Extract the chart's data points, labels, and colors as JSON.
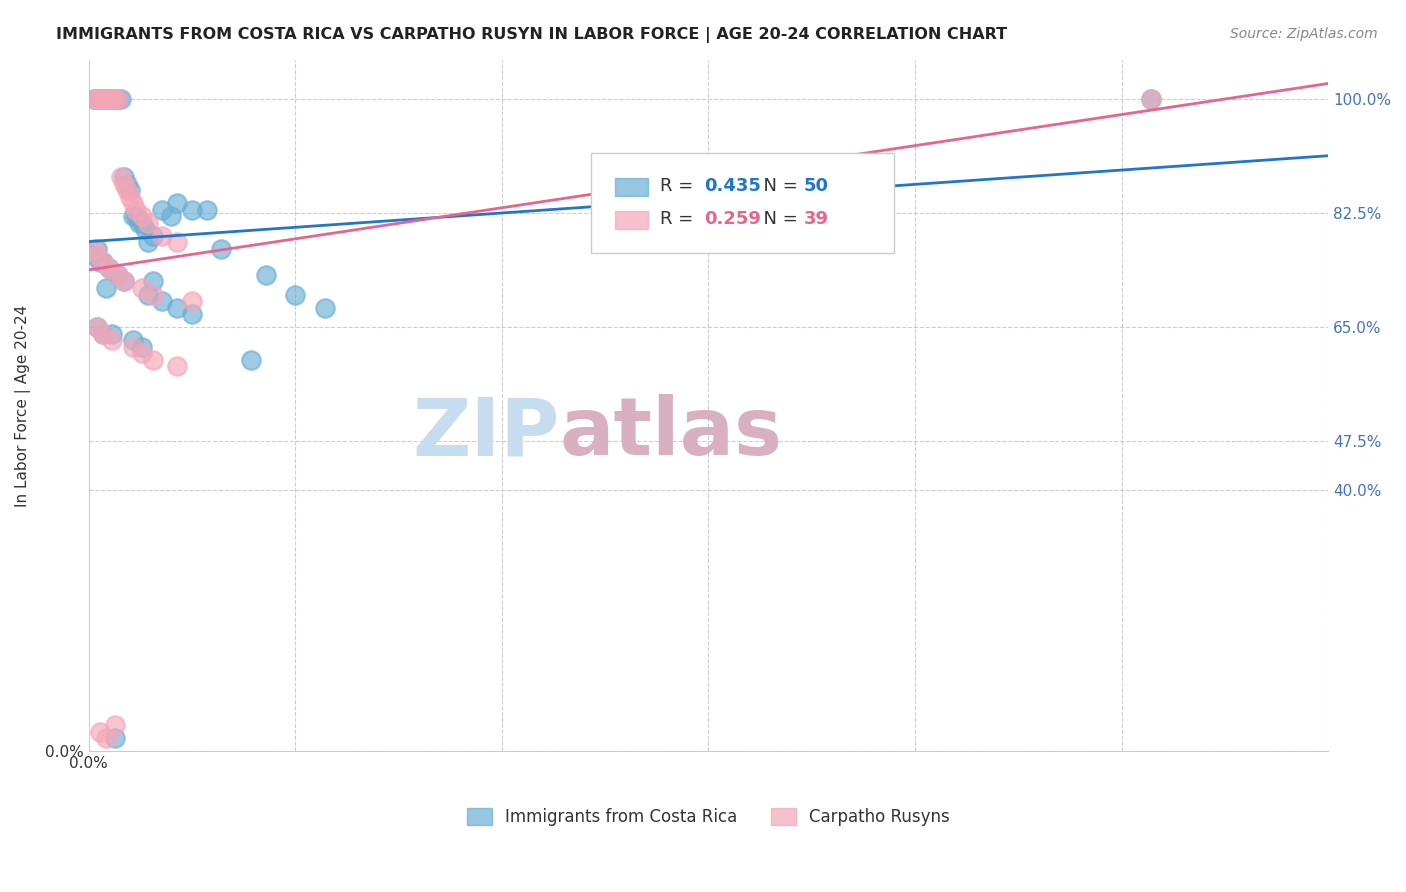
{
  "title": "IMMIGRANTS FROM COSTA RICA VS CARPATHO RUSYN IN LABOR FORCE | AGE 20-24 CORRELATION CHART",
  "source": "Source: ZipAtlas.com",
  "ylabel": "In Labor Force | Age 20-24",
  "legend_labels": [
    "Immigrants from Costa Rica",
    "Carpatho Rusyns"
  ],
  "blue_R": 0.435,
  "blue_N": 50,
  "pink_R": 0.259,
  "pink_N": 39,
  "blue_color": "#6aaed6",
  "pink_color": "#f4a6b8",
  "blue_line_color": "#2176c7",
  "pink_line_color": "#e8648c",
  "title_color": "#222222",
  "axis_label_color": "#333333",
  "right_axis_color": "#4472c4",
  "watermark_zip_color": "#c8dcf0",
  "watermark_atlas_color": "#d8b0c0",
  "background_color": "#ffffff",
  "grid_color": "#cccccc",
  "xlim": [
    0.0,
    0.42
  ],
  "ylim": [
    0.0,
    1.06
  ],
  "yticks_right": [
    0.4,
    0.475,
    0.65,
    0.825,
    1.0
  ],
  "ytick_right_labels": [
    "40.0%",
    "47.5%",
    "65.0%",
    "82.5%",
    "100.0%"
  ],
  "blue_x": [
    0.002,
    0.003,
    0.004,
    0.005,
    0.006,
    0.007,
    0.008,
    0.009,
    0.01,
    0.011,
    0.012,
    0.013,
    0.014,
    0.015,
    0.016,
    0.017,
    0.018,
    0.019,
    0.02,
    0.022,
    0.025,
    0.028,
    0.03,
    0.035,
    0.04,
    0.045,
    0.06,
    0.07,
    0.08,
    0.36,
    0.002,
    0.003,
    0.005,
    0.007,
    0.01,
    0.012,
    0.02,
    0.025,
    0.03,
    0.003,
    0.005,
    0.008,
    0.015,
    0.018,
    0.022,
    0.035,
    0.055,
    0.004,
    0.006,
    0.009
  ],
  "blue_y": [
    1.0,
    1.0,
    1.0,
    1.0,
    1.0,
    1.0,
    1.0,
    1.0,
    1.0,
    1.0,
    0.88,
    0.87,
    0.86,
    0.82,
    0.82,
    0.81,
    0.81,
    0.8,
    0.78,
    0.79,
    0.83,
    0.82,
    0.84,
    0.83,
    0.83,
    0.77,
    0.73,
    0.7,
    0.68,
    1.0,
    0.76,
    0.77,
    0.75,
    0.74,
    0.73,
    0.72,
    0.7,
    0.69,
    0.68,
    0.65,
    0.64,
    0.64,
    0.63,
    0.62,
    0.72,
    0.67,
    0.6,
    0.75,
    0.71,
    0.02
  ],
  "pink_x": [
    0.002,
    0.003,
    0.004,
    0.005,
    0.006,
    0.007,
    0.008,
    0.009,
    0.01,
    0.011,
    0.012,
    0.013,
    0.014,
    0.015,
    0.016,
    0.018,
    0.02,
    0.025,
    0.03,
    0.002,
    0.003,
    0.005,
    0.007,
    0.01,
    0.012,
    0.018,
    0.022,
    0.035,
    0.003,
    0.005,
    0.008,
    0.015,
    0.018,
    0.022,
    0.03,
    0.36,
    0.004,
    0.006,
    0.009
  ],
  "pink_y": [
    1.0,
    1.0,
    1.0,
    1.0,
    1.0,
    1.0,
    1.0,
    1.0,
    1.0,
    0.88,
    0.87,
    0.86,
    0.85,
    0.84,
    0.83,
    0.82,
    0.81,
    0.79,
    0.78,
    0.77,
    0.76,
    0.75,
    0.74,
    0.73,
    0.72,
    0.71,
    0.7,
    0.69,
    0.65,
    0.64,
    0.63,
    0.62,
    0.61,
    0.6,
    0.59,
    1.0,
    0.03,
    0.02,
    0.04
  ]
}
